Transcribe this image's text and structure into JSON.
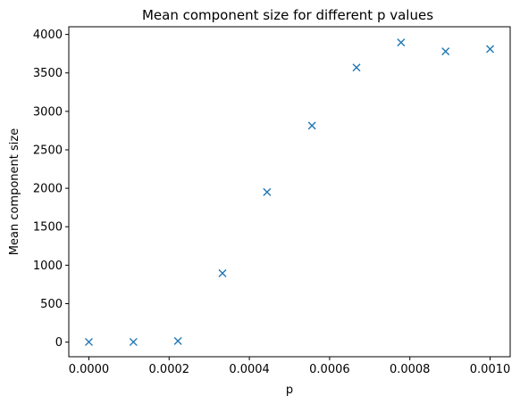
{
  "chart_data": {
    "type": "scatter",
    "title": "Mean component size for different p values",
    "xlabel": "p",
    "ylabel": "Mean component size",
    "marker": "x",
    "color": "#1f77b4",
    "grid": false,
    "legend": "none",
    "xlim": [
      -5e-05,
      0.00105
    ],
    "ylim": [
      -190,
      4100
    ],
    "xticks": [
      0.0,
      0.0002,
      0.0004,
      0.0006,
      0.0008,
      0.001
    ],
    "xtick_labels": [
      "0.0000",
      "0.0002",
      "0.0004",
      "0.0006",
      "0.0008",
      "0.0010"
    ],
    "yticks": [
      0,
      500,
      1000,
      1500,
      2000,
      2500,
      3000,
      3500,
      4000
    ],
    "ytick_labels": [
      "0",
      "500",
      "1000",
      "1500",
      "2000",
      "2500",
      "3000",
      "3500",
      "4000"
    ],
    "x": [
      0.0,
      0.000111,
      0.000222,
      0.000333,
      0.000444,
      0.000556,
      0.000667,
      0.000778,
      0.000889,
      0.001
    ],
    "y": [
      2,
      2,
      15,
      895,
      1950,
      2815,
      3570,
      3895,
      3780,
      3810
    ]
  }
}
